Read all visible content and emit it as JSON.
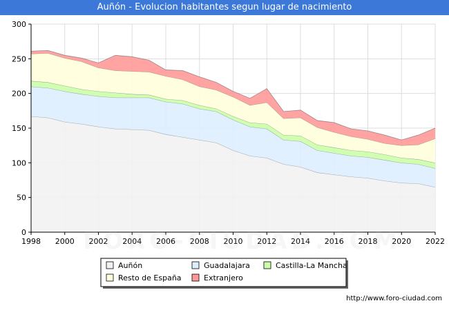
{
  "chart_data": {
    "type": "area",
    "title": "Auñón - Evolucion habitantes segun lugar de nacimiento",
    "xlabel": "",
    "ylabel": "",
    "x": [
      1998,
      1999,
      2000,
      2001,
      2002,
      2003,
      2004,
      2005,
      2006,
      2007,
      2008,
      2009,
      2010,
      2011,
      2012,
      2013,
      2014,
      2015,
      2016,
      2017,
      2018,
      2019,
      2020,
      2021,
      2022
    ],
    "xticks": [
      1998,
      2000,
      2002,
      2004,
      2006,
      2008,
      2010,
      2012,
      2014,
      2016,
      2018,
      2020,
      2022
    ],
    "yticks": [
      0,
      50,
      100,
      150,
      200,
      250,
      300
    ],
    "ylim": [
      0,
      300
    ],
    "grid": true,
    "stacked": true,
    "series": [
      {
        "name": "Auñón",
        "color": "#f2f2f2",
        "values": [
          167,
          165,
          159,
          156,
          152,
          149,
          148,
          147,
          141,
          137,
          133,
          129,
          118,
          110,
          107,
          98,
          94,
          86,
          83,
          80,
          78,
          74,
          71,
          70,
          65
        ]
      },
      {
        "name": "Guadalajara",
        "color": "#ddeeff",
        "values": [
          43,
          43,
          44,
          43,
          44,
          45,
          46,
          47,
          47,
          48,
          45,
          45,
          44,
          42,
          42,
          35,
          37,
          32,
          31,
          30,
          30,
          30,
          29,
          28,
          27
        ]
      },
      {
        "name": "Castilla-La Mancha",
        "color": "#ccffaa",
        "values": [
          8,
          8,
          8,
          7,
          7,
          7,
          5,
          4,
          4,
          5,
          5,
          4,
          5,
          6,
          7,
          7,
          8,
          8,
          8,
          8,
          8,
          8,
          7,
          7,
          8
        ]
      },
      {
        "name": "Resto de España",
        "color": "#ffffdd",
        "values": [
          39,
          42,
          40,
          40,
          34,
          32,
          33,
          33,
          33,
          30,
          27,
          27,
          28,
          25,
          31,
          24,
          26,
          25,
          22,
          20,
          18,
          16,
          18,
          21,
          35
        ]
      },
      {
        "name": "Extranjero",
        "color": "#ff9999",
        "values": [
          4,
          4,
          4,
          5,
          7,
          22,
          21,
          17,
          9,
          13,
          14,
          11,
          8,
          10,
          20,
          10,
          11,
          10,
          14,
          11,
          12,
          12,
          8,
          14,
          15
        ]
      }
    ],
    "legend_position": "bottom-center"
  },
  "source": "http://www.foro-ciudad.com",
  "watermark": "FORO-CIUDAD.COM"
}
